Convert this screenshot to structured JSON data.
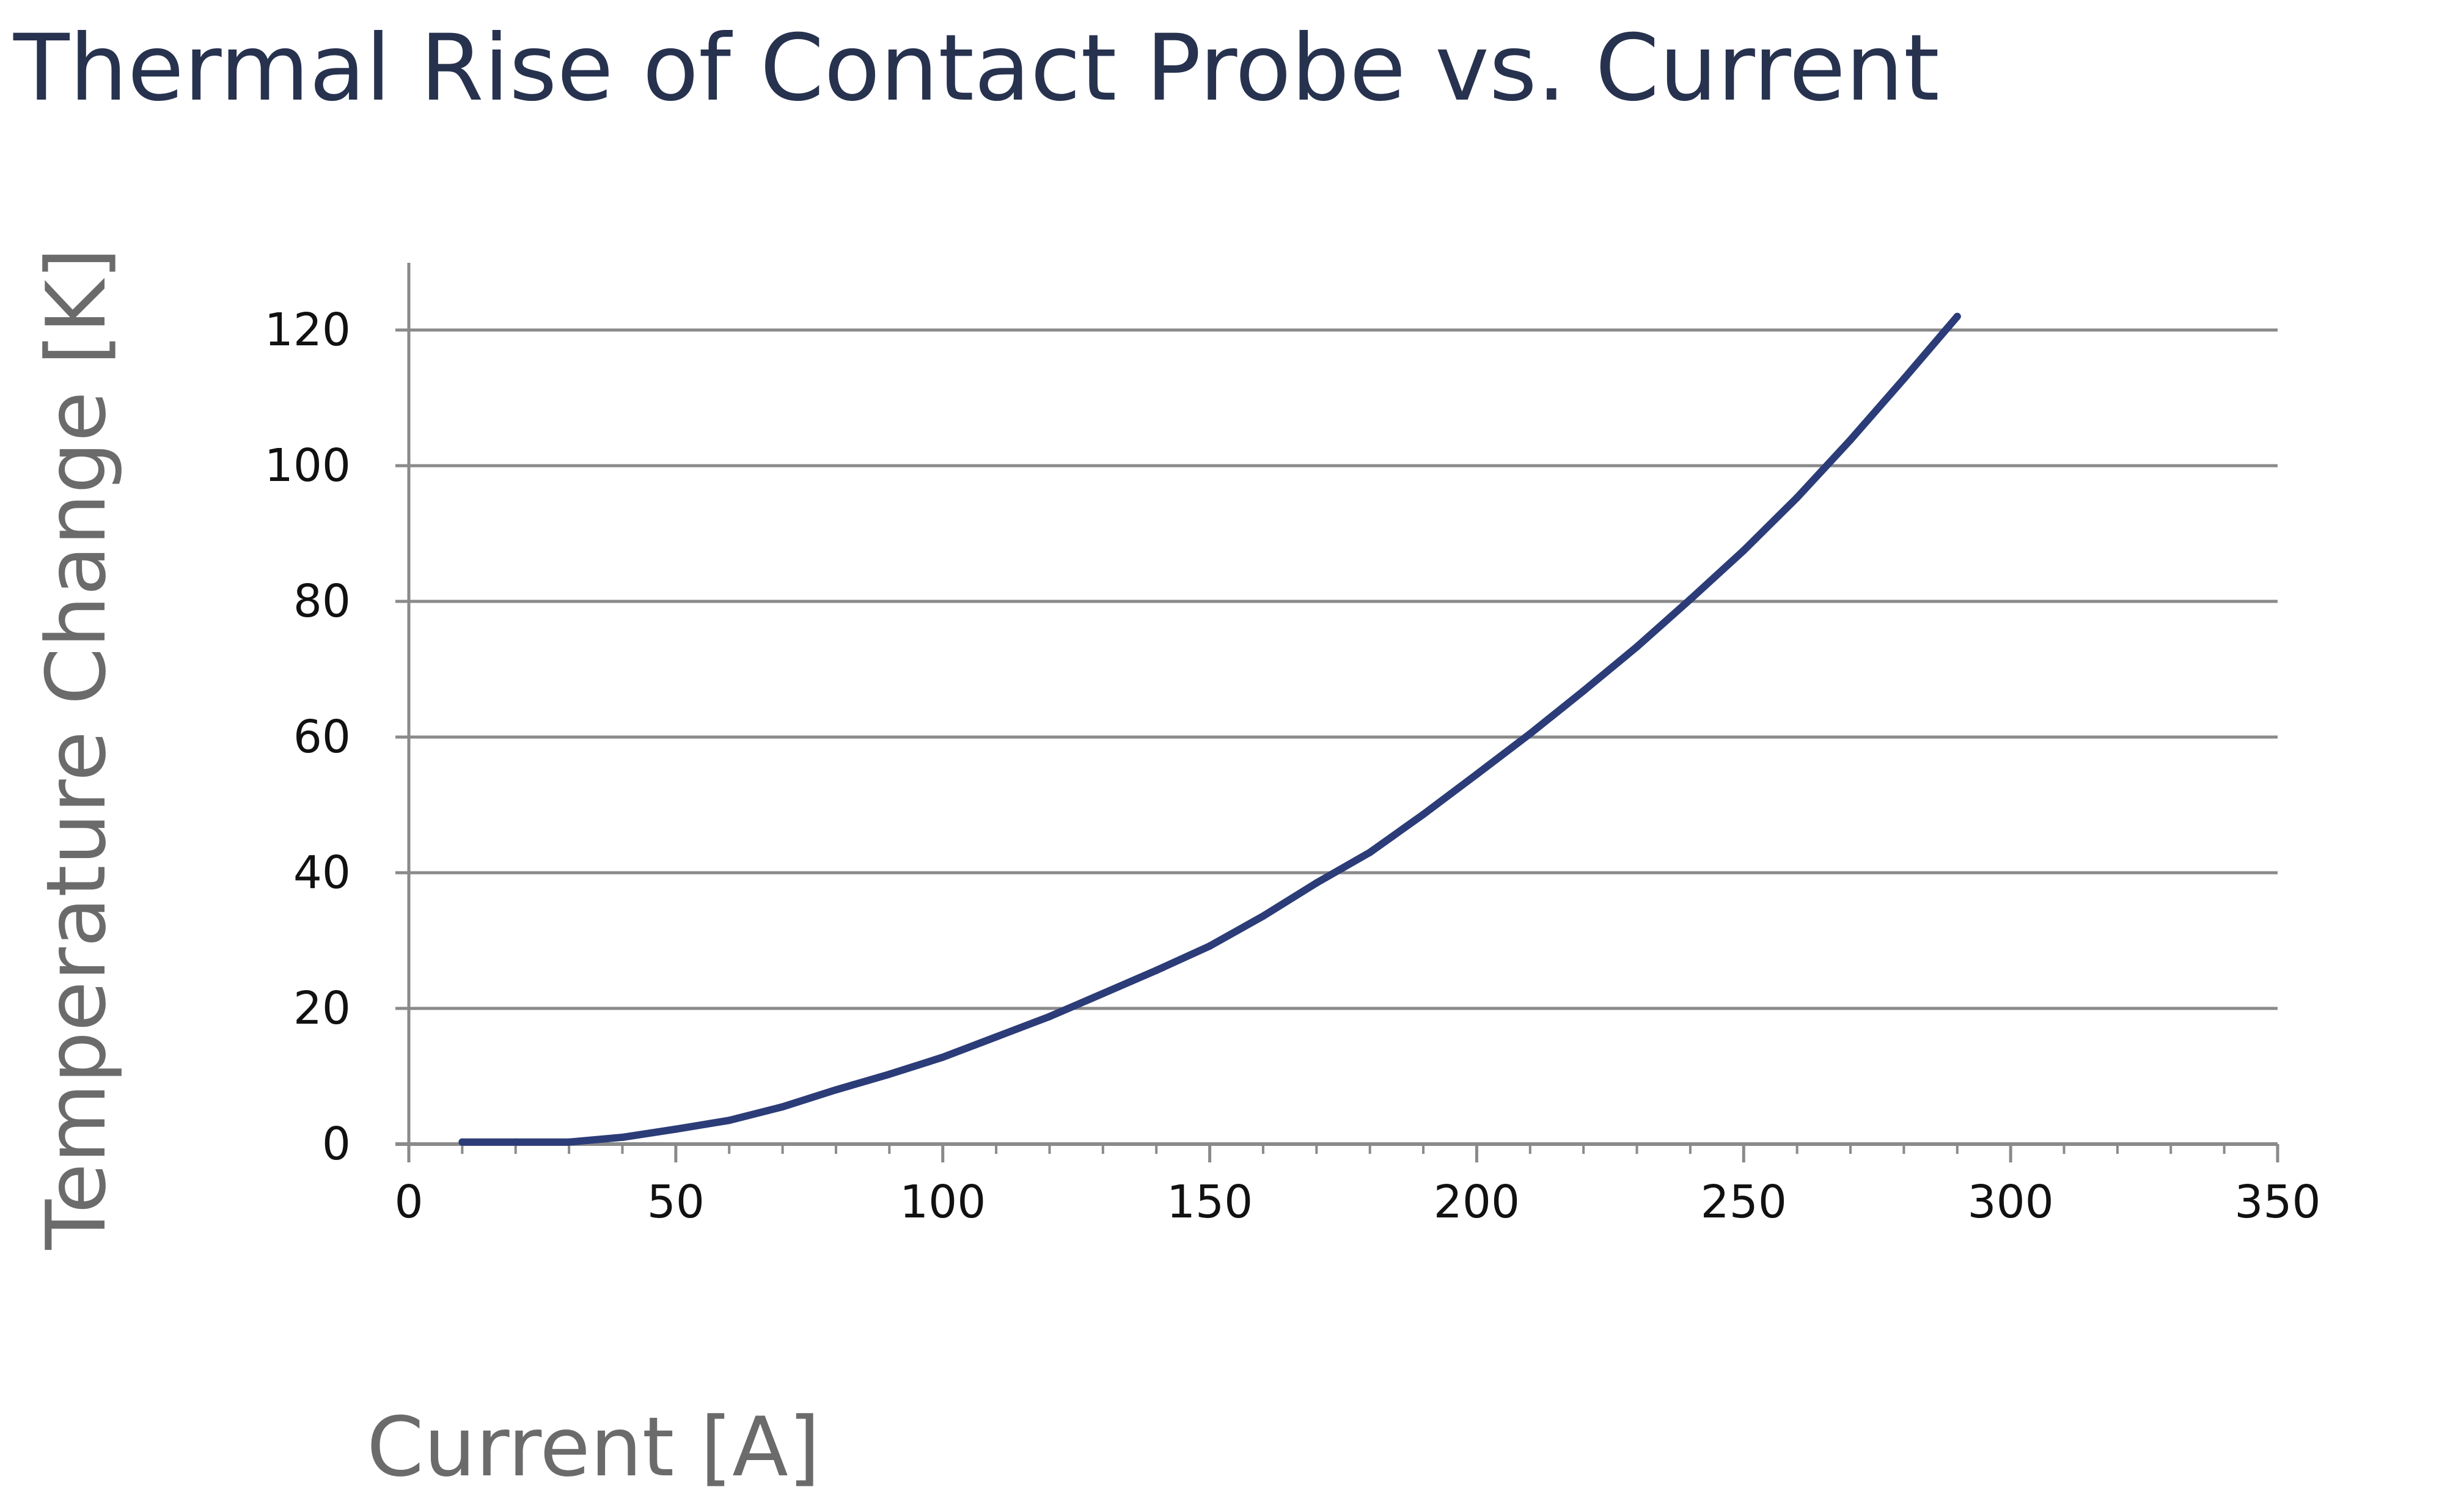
{
  "chart_data": {
    "type": "line",
    "title": "Thermal Rise of Contact Probe vs. Current",
    "xlabel": "Current [A]",
    "ylabel": "Temperature Change [K]",
    "xlim": [
      0,
      350
    ],
    "ylim": [
      0,
      130
    ],
    "x_ticks": [
      0,
      50,
      100,
      150,
      200,
      250,
      300,
      350
    ],
    "y_ticks": [
      0,
      20,
      40,
      60,
      80,
      100,
      120
    ],
    "x_minor_step": 10,
    "grid": "horizontal",
    "legend": "none",
    "series": [
      {
        "color": "#2b3c78",
        "x": [
          10,
          20,
          30,
          40,
          50,
          60,
          70,
          80,
          90,
          100,
          110,
          120,
          130,
          140,
          150,
          160,
          170,
          180,
          190,
          200,
          210,
          220,
          230,
          240,
          250,
          260,
          270,
          280,
          290
        ],
        "y": [
          0.3,
          0.3,
          0.3,
          1,
          2.2,
          3.5,
          5.5,
          8,
          10.3,
          12.8,
          15.8,
          18.8,
          22.2,
          25.6,
          29.2,
          33.6,
          38.5,
          43,
          48.6,
          54.5,
          60.5,
          66.8,
          73.3,
          80.3,
          87.5,
          95.3,
          103.8,
          112.8,
          122
        ]
      }
    ]
  }
}
